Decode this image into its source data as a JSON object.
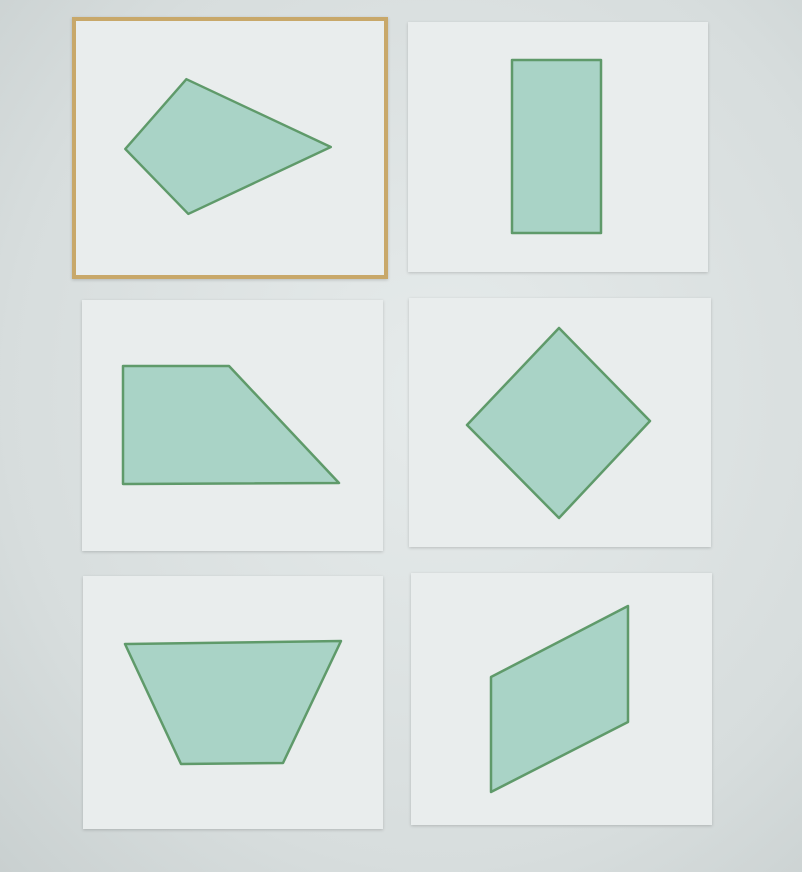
{
  "colors": {
    "shape_fill": "#a9d3c6",
    "shape_stroke": "#5f9a6a",
    "selection_border": "#c8a86a",
    "card_background": "#e9eded"
  },
  "cards": [
    {
      "shape": "kite",
      "selected": true
    },
    {
      "shape": "rectangle",
      "selected": false
    },
    {
      "shape": "trapezoid-right",
      "selected": false
    },
    {
      "shape": "square-rotated",
      "selected": false
    },
    {
      "shape": "trapezoid-isosceles",
      "selected": false
    },
    {
      "shape": "parallelogram",
      "selected": false
    }
  ]
}
